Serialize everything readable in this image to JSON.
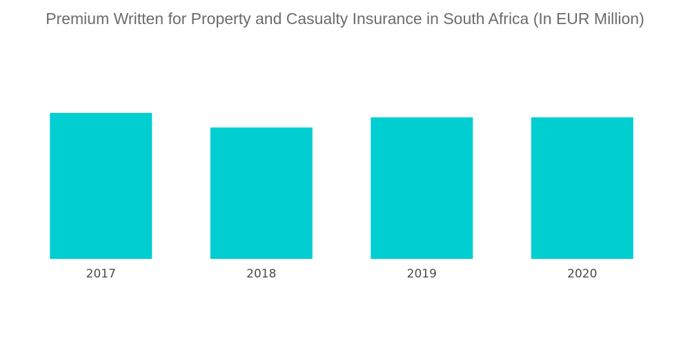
{
  "chart_data": {
    "type": "bar",
    "title": "Premium Written for Property and Casualty Insurance in South Africa (In EUR Million)",
    "categories": [
      "2017",
      "2018",
      "2019",
      "2020"
    ],
    "values": [
      100,
      90,
      97,
      97
    ],
    "ylim": [
      0,
      100
    ],
    "xlabel": "",
    "ylabel": "",
    "grid": false,
    "bar_color": "#00ced1",
    "tick_label_color": "#4a4a4a",
    "title_color": "#6b6b6b"
  }
}
